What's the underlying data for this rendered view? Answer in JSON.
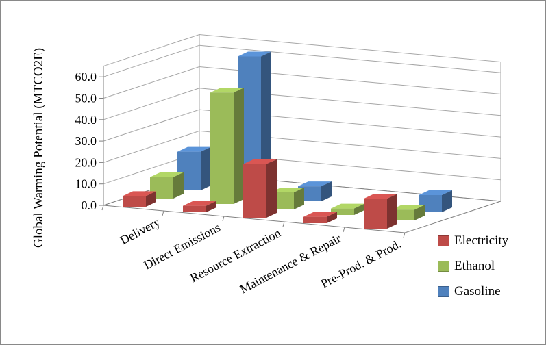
{
  "chart_data": {
    "type": "bar",
    "style": "3d-column",
    "title": "",
    "ylabel": "Global Warming Potential (MTCO2E)",
    "xlabel": "",
    "categories": [
      "Delivery",
      "Direct Emissions",
      "Resource Extraction",
      "Maintenance & Repair",
      "Pre-Prod. & Prod."
    ],
    "series": [
      {
        "name": "Electricity",
        "color": "#BE4B48",
        "values": [
          5,
          3,
          25,
          3,
          14
        ]
      },
      {
        "name": "Ethanol",
        "color": "#9BBB59",
        "values": [
          10,
          52,
          8,
          3,
          5
        ]
      },
      {
        "name": "Gasoline",
        "color": "#4F81BD",
        "values": [
          18,
          65,
          7,
          0,
          8
        ]
      }
    ],
    "ylim": [
      0,
      60
    ],
    "ytick_step": 10,
    "ytick_labels": [
      "0.0",
      "10.0",
      "20.0",
      "30.0",
      "40.0",
      "50.0",
      "60.0"
    ],
    "grid": true,
    "legend_position": "bottom-right",
    "wall_color": "#FFFFFF",
    "gridline_color": "#A6A6A6",
    "axis_color": "#808080"
  }
}
